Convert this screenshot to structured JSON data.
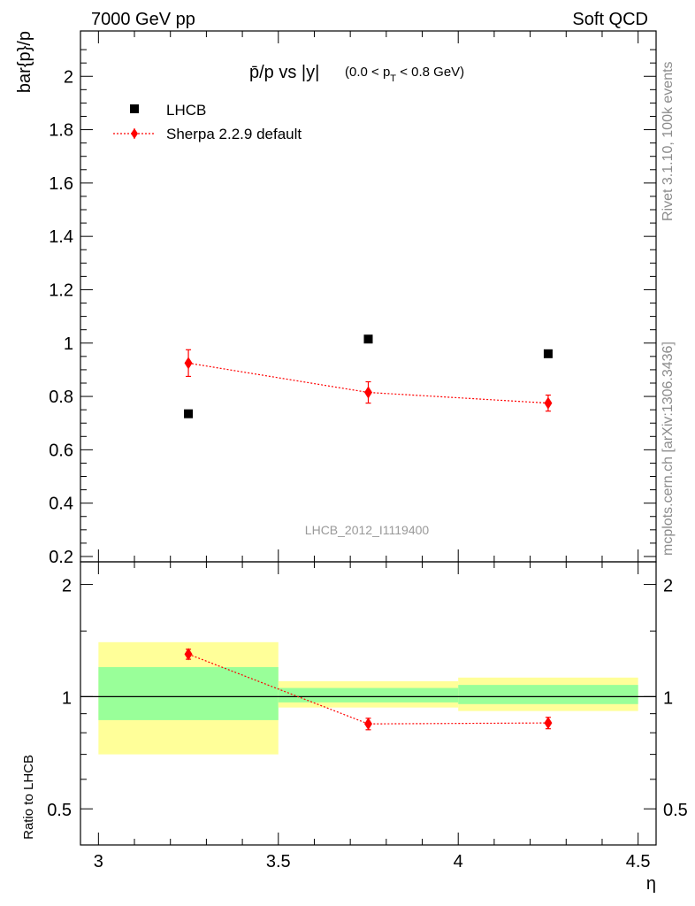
{
  "header": {
    "left": "7000 GeV pp",
    "right": "Soft QCD"
  },
  "side_labels": {
    "rivet": "Rivet 3.1.10,  100k events",
    "mcplots": "mcplots.cern.ch [arXiv:1306.3436]"
  },
  "watermark": "LHCB_2012_I1119400",
  "chart_data": [
    {
      "type": "scatter",
      "panel": "main",
      "title_main": "p̄/p vs |y|",
      "title_cut": "(0.0 < p",
      "title_cut_sub": "T",
      "title_cut_end": " < 0.8 GeV)",
      "ylabel": "bar{p}/p",
      "xlabel": "η",
      "xlim": [
        2.95,
        4.55
      ],
      "ylim": [
        0.18,
        2.17
      ],
      "x_ticks": [
        3,
        3.5,
        4,
        4.5
      ],
      "x_tick_labels": [
        "3",
        "3.5",
        "4",
        "4.5"
      ],
      "y_ticks": [
        0.2,
        0.4,
        0.6,
        0.8,
        1.0,
        1.2,
        1.4,
        1.6,
        1.8,
        2.0
      ],
      "y_tick_labels": [
        "0.2",
        "0.4",
        "0.6",
        "0.8",
        "1",
        "1.2",
        "1.4",
        "1.6",
        "1.8",
        "2"
      ],
      "legend_position": "top-left",
      "series": [
        {
          "name": "LHCB",
          "marker": "square",
          "color": "#000000",
          "x": [
            3.25,
            3.75,
            4.25
          ],
          "y": [
            0.735,
            1.015,
            0.96
          ]
        },
        {
          "name": "Sherpa 2.2.9 default",
          "marker": "diamond",
          "color": "#ff0000",
          "line": "dotted",
          "x": [
            3.25,
            3.75,
            4.25
          ],
          "y": [
            0.925,
            0.815,
            0.775
          ],
          "yerr": [
            0.05,
            0.04,
            0.03
          ]
        }
      ]
    },
    {
      "type": "scatter",
      "panel": "ratio",
      "ylabel": "Ratio to LHCB",
      "ylim": [
        0.4,
        2.3
      ],
      "log_y": true,
      "y_ticks": [
        0.5,
        1,
        2
      ],
      "y_tick_labels": [
        "0.5",
        "1",
        "2"
      ],
      "reference_line": 1,
      "bands": [
        {
          "x": [
            3.0,
            3.5
          ],
          "yellow": [
            0.7,
            1.4
          ],
          "green": [
            0.865,
            1.2
          ]
        },
        {
          "x": [
            3.5,
            4.0
          ],
          "yellow": [
            0.935,
            1.1
          ],
          "green": [
            0.965,
            1.055
          ]
        },
        {
          "x": [
            4.0,
            4.5
          ],
          "yellow": [
            0.915,
            1.125
          ],
          "green": [
            0.955,
            1.075
          ]
        }
      ],
      "series": [
        {
          "name": "Sherpa 2.2.9 default",
          "marker": "diamond",
          "color": "#ff0000",
          "line": "dotted",
          "x": [
            3.25,
            3.75,
            4.25
          ],
          "y": [
            1.3,
            0.845,
            0.85
          ],
          "yerr": [
            0.04,
            0.03,
            0.03
          ]
        }
      ]
    }
  ]
}
